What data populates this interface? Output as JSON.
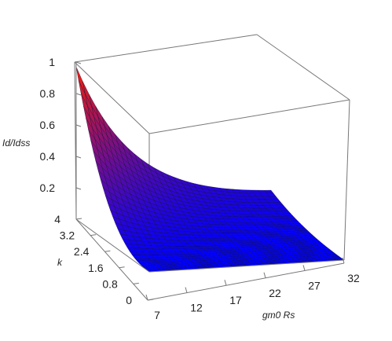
{
  "chart_data": {
    "type": "surface3d",
    "title": "",
    "xlabel": "gm0 Rs",
    "ylabel": "k",
    "zlabel": "Id/Idss",
    "x_ticks": [
      "7",
      "12",
      "17",
      "22",
      "27",
      "32"
    ],
    "y_ticks": [
      "0",
      "0.8",
      "1.6",
      "2.4",
      "3.2",
      "4"
    ],
    "z_ticks": [
      "0.2",
      "0.4",
      "0.6",
      "0.8",
      "1"
    ],
    "xlim": [
      7,
      32
    ],
    "ylim": [
      0,
      4
    ],
    "zlim": [
      0,
      1
    ],
    "grid": false,
    "surface": {
      "x_range": [
        7,
        32
      ],
      "y_range": [
        0,
        4
      ],
      "grid_n": [
        30,
        30
      ],
      "colormap": [
        "#0000ff",
        "#ff2000"
      ],
      "edge_color": "#101030"
    },
    "sample_points": [
      {
        "x": 7,
        "y": 0,
        "z": 0.0
      },
      {
        "x": 7,
        "y": 4,
        "z": 0.97
      },
      {
        "x": 7,
        "y": 2.4,
        "z": 0.38
      },
      {
        "x": 7,
        "y": 1.6,
        "z": 0.15
      },
      {
        "x": 32,
        "y": 4,
        "z": 0.07
      },
      {
        "x": 32,
        "y": 0,
        "z": 0.0
      }
    ]
  }
}
